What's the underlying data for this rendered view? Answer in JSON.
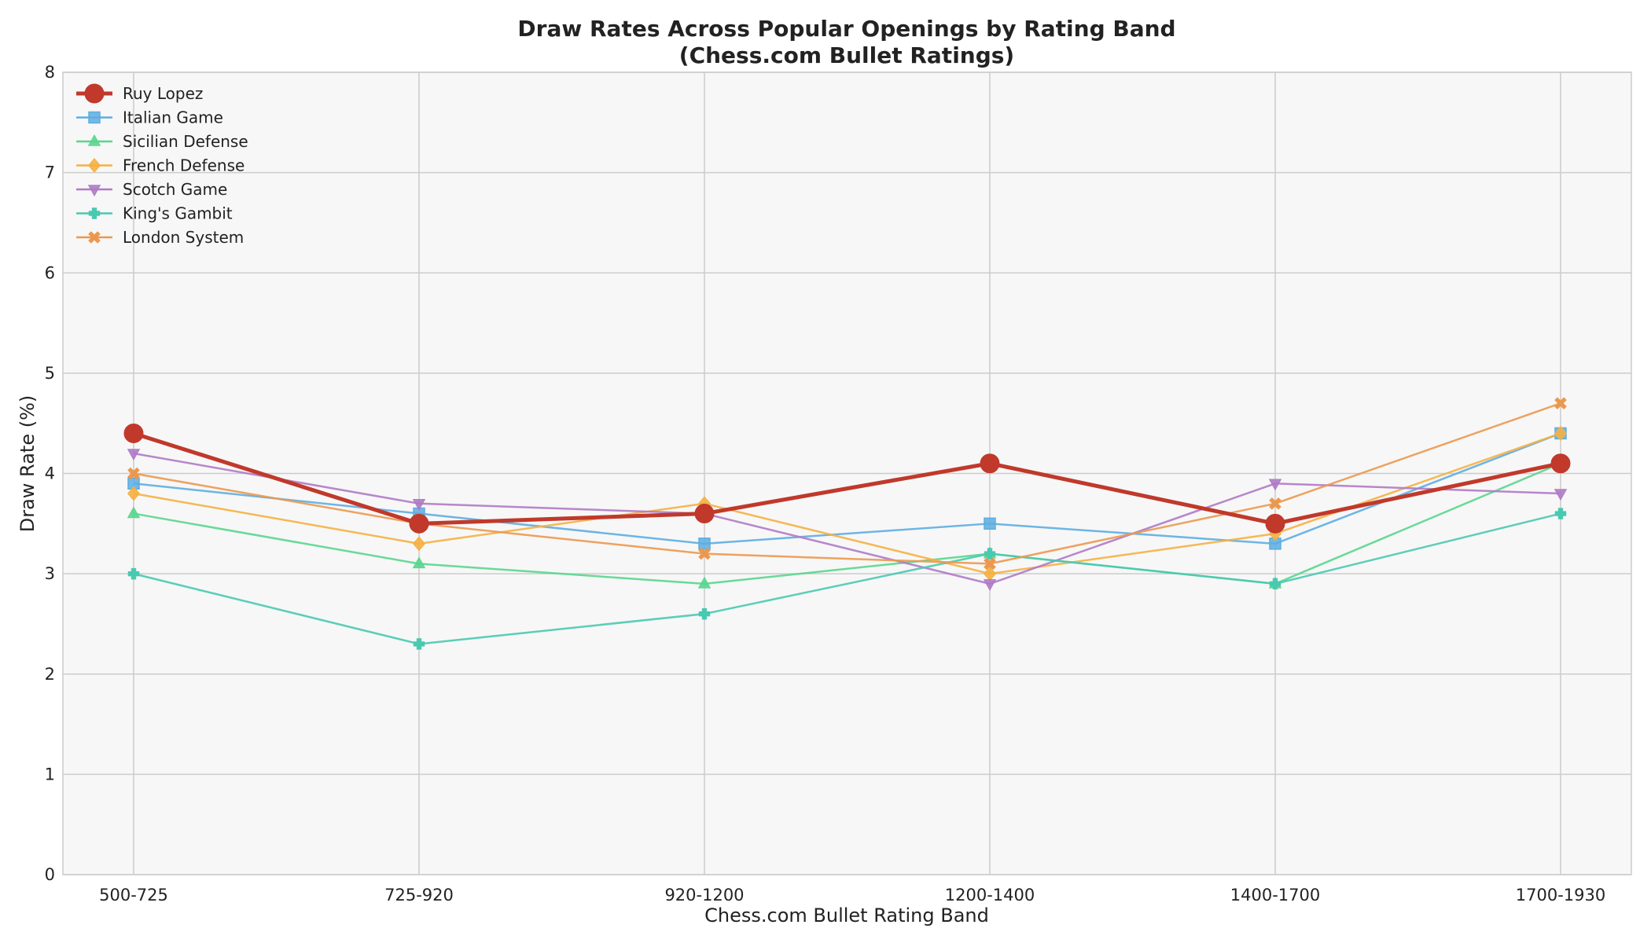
{
  "chart_data": {
    "type": "line",
    "title": "Draw Rates Across Popular Openings by Rating Band",
    "subtitle": "(Chess.com Bullet Ratings)",
    "xlabel": "Chess.com Bullet Rating Band",
    "ylabel": "Draw Rate (%)",
    "categories": [
      "500-725",
      "725-920",
      "920-1200",
      "1200-1400",
      "1400-1700",
      "1700-1930"
    ],
    "ylim": [
      0,
      8
    ],
    "yticks": [
      "0",
      "1",
      "2",
      "3",
      "4",
      "5",
      "6",
      "7",
      "8"
    ],
    "grid": true,
    "legend_position": "top-left",
    "series": [
      {
        "name": "Ruy Lopez",
        "color": "#c0392b",
        "marker": "circle",
        "emphasis": true,
        "values": [
          4.4,
          3.5,
          3.6,
          4.1,
          3.5,
          4.1
        ]
      },
      {
        "name": "Italian Game",
        "color": "#5dade2",
        "marker": "square",
        "values": [
          3.9,
          3.6,
          3.3,
          3.5,
          3.3,
          4.4
        ]
      },
      {
        "name": "Sicilian Defense",
        "color": "#58d68d",
        "marker": "triangle-up",
        "values": [
          3.6,
          3.1,
          2.9,
          3.2,
          2.9,
          4.1
        ]
      },
      {
        "name": "French Defense",
        "color": "#f5b041",
        "marker": "diamond",
        "values": [
          3.8,
          3.3,
          3.7,
          3.0,
          3.4,
          4.4
        ]
      },
      {
        "name": "Scotch Game",
        "color": "#af7ac5",
        "marker": "triangle-down",
        "values": [
          4.2,
          3.7,
          3.6,
          2.9,
          3.9,
          3.8
        ]
      },
      {
        "name": "King's Gambit",
        "color": "#48c9b0",
        "marker": "plus",
        "values": [
          3.0,
          2.3,
          2.6,
          3.2,
          2.9,
          3.6
        ]
      },
      {
        "name": "London System",
        "color": "#eb984e",
        "marker": "x",
        "values": [
          4.0,
          3.5,
          3.2,
          3.1,
          3.7,
          4.7
        ]
      }
    ]
  }
}
